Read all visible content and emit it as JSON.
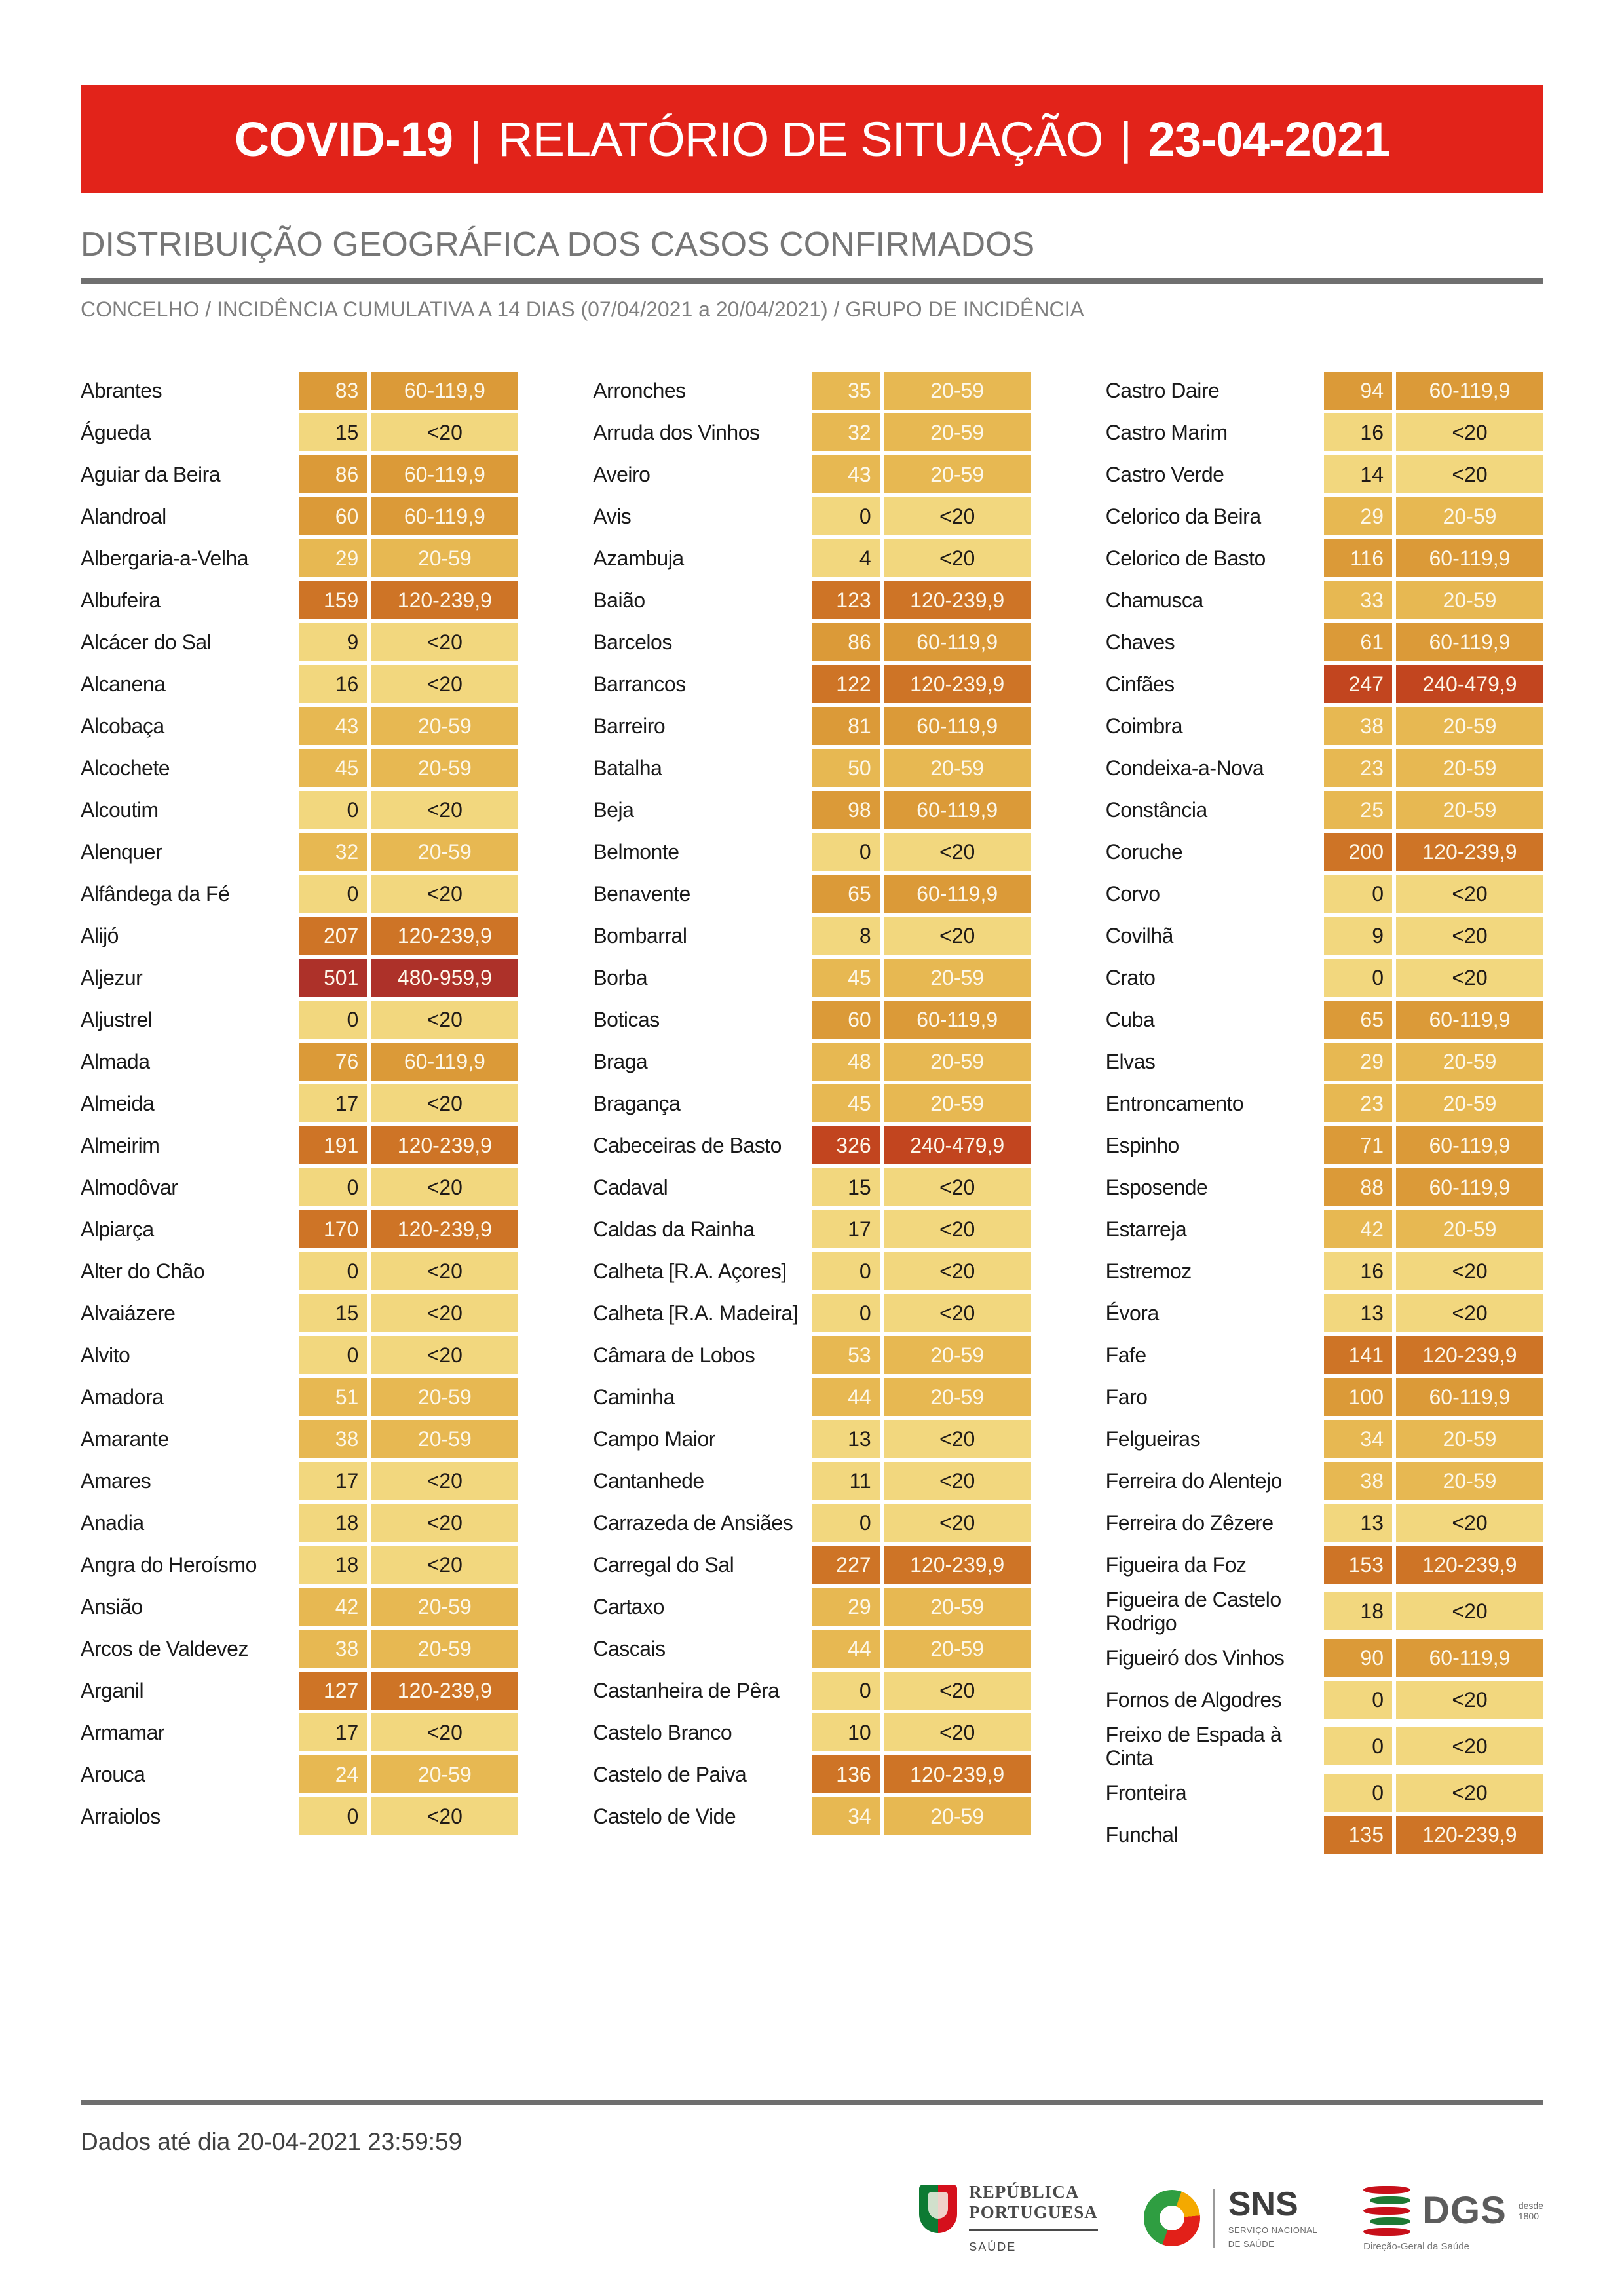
{
  "banner": {
    "product": "COVID-19",
    "separator": "|",
    "report_title": "RELATÓRIO DE SITUAÇÃO",
    "date": "23-04-2021",
    "bg_color": "#E2231A"
  },
  "section": {
    "title": "DISTRIBUIÇÃO GEOGRÁFICA DOS CASOS CONFIRMADOS",
    "subtitle": "CONCELHO / INCIDÊNCIA CUMULATIVA A 14 DIAS (07/04/2021 a 20/04/2021) / GRUPO DE INCIDÊNCIA"
  },
  "group_colors": {
    "<20": {
      "bg": "#F2D77E",
      "text": "#1f1a17"
    },
    "20-59": {
      "bg": "#E7B852",
      "text": "#FDF8EA"
    },
    "60-119,9": {
      "bg": "#DB9A38",
      "text": "#FDF8EA"
    },
    "120-239,9": {
      "bg": "#CE7426",
      "text": "#FDF8EA"
    },
    "240-479,9": {
      "bg": "#C2451F",
      "text": "#FDF8EA"
    },
    "480-959,9": {
      "bg": "#AD3129",
      "text": "#FDF8EA"
    }
  },
  "columns": [
    [
      {
        "name": "Abrantes",
        "value": 83,
        "group": "60-119,9"
      },
      {
        "name": "Águeda",
        "value": 15,
        "group": "<20"
      },
      {
        "name": "Aguiar da Beira",
        "value": 86,
        "group": "60-119,9"
      },
      {
        "name": "Alandroal",
        "value": 60,
        "group": "60-119,9"
      },
      {
        "name": "Albergaria-a-Velha",
        "value": 29,
        "group": "20-59"
      },
      {
        "name": "Albufeira",
        "value": 159,
        "group": "120-239,9"
      },
      {
        "name": "Alcácer do Sal",
        "value": 9,
        "group": "<20"
      },
      {
        "name": "Alcanena",
        "value": 16,
        "group": "<20"
      },
      {
        "name": "Alcobaça",
        "value": 43,
        "group": "20-59"
      },
      {
        "name": "Alcochete",
        "value": 45,
        "group": "20-59"
      },
      {
        "name": "Alcoutim",
        "value": 0,
        "group": "<20"
      },
      {
        "name": "Alenquer",
        "value": 32,
        "group": "20-59"
      },
      {
        "name": "Alfândega da Fé",
        "value": 0,
        "group": "<20"
      },
      {
        "name": "Alijó",
        "value": 207,
        "group": "120-239,9"
      },
      {
        "name": "Aljezur",
        "value": 501,
        "group": "480-959,9"
      },
      {
        "name": "Aljustrel",
        "value": 0,
        "group": "<20"
      },
      {
        "name": "Almada",
        "value": 76,
        "group": "60-119,9"
      },
      {
        "name": "Almeida",
        "value": 17,
        "group": "<20"
      },
      {
        "name": "Almeirim",
        "value": 191,
        "group": "120-239,9"
      },
      {
        "name": "Almodôvar",
        "value": 0,
        "group": "<20"
      },
      {
        "name": "Alpiarça",
        "value": 170,
        "group": "120-239,9"
      },
      {
        "name": "Alter do Chão",
        "value": 0,
        "group": "<20"
      },
      {
        "name": "Alvaiázere",
        "value": 15,
        "group": "<20"
      },
      {
        "name": "Alvito",
        "value": 0,
        "group": "<20"
      },
      {
        "name": "Amadora",
        "value": 51,
        "group": "20-59"
      },
      {
        "name": "Amarante",
        "value": 38,
        "group": "20-59"
      },
      {
        "name": "Amares",
        "value": 17,
        "group": "<20"
      },
      {
        "name": "Anadia",
        "value": 18,
        "group": "<20"
      },
      {
        "name": "Angra do Heroísmo",
        "value": 18,
        "group": "<20"
      },
      {
        "name": "Ansião",
        "value": 42,
        "group": "20-59"
      },
      {
        "name": "Arcos de Valdevez",
        "value": 38,
        "group": "20-59"
      },
      {
        "name": "Arganil",
        "value": 127,
        "group": "120-239,9"
      },
      {
        "name": "Armamar",
        "value": 17,
        "group": "<20"
      },
      {
        "name": "Arouca",
        "value": 24,
        "group": "20-59"
      },
      {
        "name": "Arraiolos",
        "value": 0,
        "group": "<20"
      }
    ],
    [
      {
        "name": "Arronches",
        "value": 35,
        "group": "20-59"
      },
      {
        "name": "Arruda dos Vinhos",
        "value": 32,
        "group": "20-59"
      },
      {
        "name": "Aveiro",
        "value": 43,
        "group": "20-59"
      },
      {
        "name": "Avis",
        "value": 0,
        "group": "<20"
      },
      {
        "name": "Azambuja",
        "value": 4,
        "group": "<20"
      },
      {
        "name": "Baião",
        "value": 123,
        "group": "120-239,9"
      },
      {
        "name": "Barcelos",
        "value": 86,
        "group": "60-119,9"
      },
      {
        "name": "Barrancos",
        "value": 122,
        "group": "120-239,9"
      },
      {
        "name": "Barreiro",
        "value": 81,
        "group": "60-119,9"
      },
      {
        "name": "Batalha",
        "value": 50,
        "group": "20-59"
      },
      {
        "name": "Beja",
        "value": 98,
        "group": "60-119,9"
      },
      {
        "name": "Belmonte",
        "value": 0,
        "group": "<20"
      },
      {
        "name": "Benavente",
        "value": 65,
        "group": "60-119,9"
      },
      {
        "name": "Bombarral",
        "value": 8,
        "group": "<20"
      },
      {
        "name": "Borba",
        "value": 45,
        "group": "20-59"
      },
      {
        "name": "Boticas",
        "value": 60,
        "group": "60-119,9"
      },
      {
        "name": "Braga",
        "value": 48,
        "group": "20-59"
      },
      {
        "name": "Bragança",
        "value": 45,
        "group": "20-59"
      },
      {
        "name": "Cabeceiras de Basto",
        "value": 326,
        "group": "240-479,9"
      },
      {
        "name": "Cadaval",
        "value": 15,
        "group": "<20"
      },
      {
        "name": "Caldas da Rainha",
        "value": 17,
        "group": "<20"
      },
      {
        "name": "Calheta [R.A. Açores]",
        "value": 0,
        "group": "<20"
      },
      {
        "name": "Calheta [R.A. Madeira]",
        "value": 0,
        "group": "<20"
      },
      {
        "name": "Câmara de Lobos",
        "value": 53,
        "group": "20-59"
      },
      {
        "name": "Caminha",
        "value": 44,
        "group": "20-59"
      },
      {
        "name": "Campo Maior",
        "value": 13,
        "group": "<20"
      },
      {
        "name": "Cantanhede",
        "value": 11,
        "group": "<20"
      },
      {
        "name": "Carrazeda de Ansiães",
        "value": 0,
        "group": "<20"
      },
      {
        "name": "Carregal do Sal",
        "value": 227,
        "group": "120-239,9"
      },
      {
        "name": "Cartaxo",
        "value": 29,
        "group": "20-59"
      },
      {
        "name": "Cascais",
        "value": 44,
        "group": "20-59"
      },
      {
        "name": "Castanheira de Pêra",
        "value": 0,
        "group": "<20"
      },
      {
        "name": "Castelo Branco",
        "value": 10,
        "group": "<20"
      },
      {
        "name": "Castelo de Paiva",
        "value": 136,
        "group": "120-239,9"
      },
      {
        "name": "Castelo de Vide",
        "value": 34,
        "group": "20-59"
      }
    ],
    [
      {
        "name": "Castro Daire",
        "value": 94,
        "group": "60-119,9"
      },
      {
        "name": "Castro Marim",
        "value": 16,
        "group": "<20"
      },
      {
        "name": "Castro Verde",
        "value": 14,
        "group": "<20"
      },
      {
        "name": "Celorico da Beira",
        "value": 29,
        "group": "20-59"
      },
      {
        "name": "Celorico de Basto",
        "value": 116,
        "group": "60-119,9"
      },
      {
        "name": "Chamusca",
        "value": 33,
        "group": "20-59"
      },
      {
        "name": "Chaves",
        "value": 61,
        "group": "60-119,9"
      },
      {
        "name": "Cinfães",
        "value": 247,
        "group": "240-479,9"
      },
      {
        "name": "Coimbra",
        "value": 38,
        "group": "20-59"
      },
      {
        "name": "Condeixa-a-Nova",
        "value": 23,
        "group": "20-59"
      },
      {
        "name": "Constância",
        "value": 25,
        "group": "20-59"
      },
      {
        "name": "Coruche",
        "value": 200,
        "group": "120-239,9"
      },
      {
        "name": "Corvo",
        "value": 0,
        "group": "<20"
      },
      {
        "name": "Covilhã",
        "value": 9,
        "group": "<20"
      },
      {
        "name": "Crato",
        "value": 0,
        "group": "<20"
      },
      {
        "name": "Cuba",
        "value": 65,
        "group": "60-119,9"
      },
      {
        "name": "Elvas",
        "value": 29,
        "group": "20-59"
      },
      {
        "name": "Entroncamento",
        "value": 23,
        "group": "20-59"
      },
      {
        "name": "Espinho",
        "value": 71,
        "group": "60-119,9"
      },
      {
        "name": "Esposende",
        "value": 88,
        "group": "60-119,9"
      },
      {
        "name": "Estarreja",
        "value": 42,
        "group": "20-59"
      },
      {
        "name": "Estremoz",
        "value": 16,
        "group": "<20"
      },
      {
        "name": "Évora",
        "value": 13,
        "group": "<20"
      },
      {
        "name": "Fafe",
        "value": 141,
        "group": "120-239,9"
      },
      {
        "name": "Faro",
        "value": 100,
        "group": "60-119,9"
      },
      {
        "name": "Felgueiras",
        "value": 34,
        "group": "20-59"
      },
      {
        "name": "Ferreira do Alentejo",
        "value": 38,
        "group": "20-59"
      },
      {
        "name": "Ferreira do Zêzere",
        "value": 13,
        "group": "<20"
      },
      {
        "name": "Figueira da Foz",
        "value": 153,
        "group": "120-239,9"
      },
      {
        "name": "Figueira de Castelo Rodrigo",
        "value": 18,
        "group": "<20"
      },
      {
        "name": "Figueiró dos Vinhos",
        "value": 90,
        "group": "60-119,9"
      },
      {
        "name": "Fornos de Algodres",
        "value": 0,
        "group": "<20"
      },
      {
        "name": "Freixo de Espada à Cinta",
        "value": 0,
        "group": "<20"
      },
      {
        "name": "Fronteira",
        "value": 0,
        "group": "<20"
      },
      {
        "name": "Funchal",
        "value": 135,
        "group": "120-239,9"
      }
    ]
  ],
  "footer": {
    "note": "Dados até dia 20-04-2021 23:59:59"
  },
  "logos": {
    "republica": {
      "line1": "REPÚBLICA",
      "line2": "PORTUGUESA",
      "sub": "SAÚDE"
    },
    "sns": {
      "word": "SNS",
      "caption1": "SERVIÇO NACIONAL",
      "caption2": "DE SAÚDE"
    },
    "dgs": {
      "word": "DGS",
      "desde1": "desde",
      "desde2": "1800",
      "caption": "Direção-Geral da Saúde"
    }
  }
}
